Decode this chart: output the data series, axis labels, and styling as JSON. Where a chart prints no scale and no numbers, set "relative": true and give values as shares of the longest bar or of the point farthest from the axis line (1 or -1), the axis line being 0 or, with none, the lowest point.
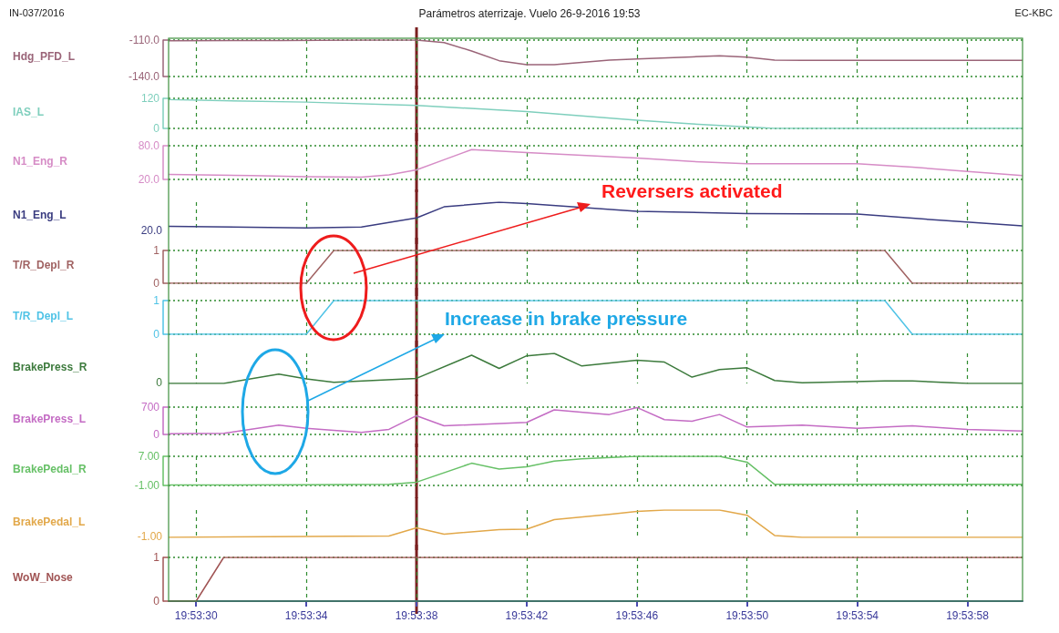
{
  "chart_data": [
    {
      "type": "line",
      "title": "Parámetros aterrizaje. Vuelo 26-9-2016 19:53",
      "annotations": [
        "IN-037/2016",
        "EC-KBC"
      ],
      "ylabel": "Hdg_PFD_L",
      "color": "#9a6478",
      "marker": "none",
      "grid": true,
      "tick_labels": "y",
      "x": [
        "2016-09-26T19:53:29",
        "2016-09-26T19:53:33",
        "2016-09-26T19:53:36",
        "2016-09-26T19:53:38",
        "2016-09-26T19:53:39",
        "2016-09-26T19:53:40",
        "2016-09-26T19:53:41",
        "2016-09-26T19:53:42",
        "2016-09-26T19:53:43",
        "2016-09-26T19:53:45",
        "2016-09-26T19:53:46",
        "2016-09-26T19:53:48",
        "2016-09-26T19:53:49",
        "2016-09-26T19:53:50",
        "2016-09-26T19:53:51",
        "2016-09-26T19:53:52",
        "2016-09-26T19:54:00"
      ],
      "values": [
        -110.5,
        -110.3,
        -110,
        -110,
        -112,
        -119,
        -127,
        -130.3,
        -130.2,
        -126.5,
        -125.5,
        -123.8,
        -123,
        -124,
        -126.5,
        -126.7,
        -126.7
      ],
      "ylim": [
        -140,
        -110
      ],
      "yticks": [
        {
          "value": -140,
          "label": "-140.0"
        },
        {
          "value": -110,
          "label": "-110.0"
        }
      ],
      "xlim": [
        "2016-09-26T19:53:29",
        "2016-09-26T19:54:00"
      ],
      "xticks": [
        {
          "value": "2016-09-26T19:53:30",
          "label": null
        },
        {
          "value": "2016-09-26T19:53:34",
          "label": null
        },
        {
          "value": "2016-09-26T19:53:38",
          "label": null
        },
        {
          "value": "2016-09-26T19:53:42",
          "label": null
        },
        {
          "value": "2016-09-26T19:53:46",
          "label": null
        },
        {
          "value": "2016-09-26T19:53:50",
          "label": null
        },
        {
          "value": "2016-09-26T19:53:54",
          "label": null
        },
        {
          "value": "2016-09-26T19:53:58",
          "label": null
        }
      ],
      "ref_lines": [
        {
          "axis": "x",
          "value": "2016-09-26T19:53:38",
          "color": "#7a1f1f"
        }
      ]
    },
    {
      "type": "line",
      "ylabel": "IAS_L",
      "color": "#7fcfbd",
      "marker": "none",
      "grid": true,
      "tick_labels": "y",
      "x": [
        "2016-09-26T19:53:29",
        "2016-09-26T19:53:34",
        "2016-09-26T19:53:38",
        "2016-09-26T19:53:42",
        "2016-09-26T19:53:46",
        "2016-09-26T19:53:48",
        "2016-09-26T19:53:51",
        "2016-09-26T19:54:00"
      ],
      "values": [
        115,
        105,
        92,
        67,
        33,
        18,
        0,
        0
      ],
      "ylim": [
        0,
        120
      ],
      "yticks": [
        0,
        120
      ],
      "xlim": [
        "2016-09-26T19:53:29",
        "2016-09-26T19:54:00"
      ],
      "xticks": [
        {
          "value": "2016-09-26T19:53:30",
          "label": null
        },
        {
          "value": "2016-09-26T19:53:34",
          "label": null
        },
        {
          "value": "2016-09-26T19:53:38",
          "label": null
        },
        {
          "value": "2016-09-26T19:53:42",
          "label": null
        },
        {
          "value": "2016-09-26T19:53:46",
          "label": null
        },
        {
          "value": "2016-09-26T19:53:50",
          "label": null
        },
        {
          "value": "2016-09-26T19:53:54",
          "label": null
        },
        {
          "value": "2016-09-26T19:53:58",
          "label": null
        }
      ],
      "ref_lines": [
        {
          "axis": "x",
          "value": "2016-09-26T19:53:38",
          "color": "#7a1f1f"
        }
      ]
    },
    {
      "type": "line",
      "ylabel": "N1_Eng_R",
      "color": "#d68cc6",
      "marker": "none",
      "grid": true,
      "tick_labels": "y",
      "x": [
        "2016-09-26T19:53:29",
        "2016-09-26T19:53:32",
        "2016-09-26T19:53:34",
        "2016-09-26T19:53:36",
        "2016-09-26T19:53:37",
        "2016-09-26T19:53:38",
        "2016-09-26T19:53:39",
        "2016-09-26T19:53:40",
        "2016-09-26T19:53:42",
        "2016-09-26T19:53:44",
        "2016-09-26T19:53:46",
        "2016-09-26T19:53:48",
        "2016-09-26T19:53:50",
        "2016-09-26T19:53:54",
        "2016-09-26T19:53:56",
        "2016-09-26T19:53:58",
        "2016-09-26T19:54:00"
      ],
      "values": [
        29,
        27,
        25,
        24,
        28,
        37,
        55,
        73,
        68,
        63,
        58,
        52,
        48,
        48,
        42,
        34,
        27
      ],
      "ylim": [
        20,
        80
      ],
      "yticks": [
        {
          "value": 20,
          "label": "20.0"
        },
        {
          "value": 80,
          "label": "80.0"
        }
      ],
      "xlim": [
        "2016-09-26T19:53:29",
        "2016-09-26T19:54:00"
      ],
      "xticks": [
        {
          "value": "2016-09-26T19:53:30",
          "label": null
        },
        {
          "value": "2016-09-26T19:53:34",
          "label": null
        },
        {
          "value": "2016-09-26T19:53:38",
          "label": null
        },
        {
          "value": "2016-09-26T19:53:42",
          "label": null
        },
        {
          "value": "2016-09-26T19:53:46",
          "label": null
        },
        {
          "value": "2016-09-26T19:53:50",
          "label": null
        },
        {
          "value": "2016-09-26T19:53:54",
          "label": null
        },
        {
          "value": "2016-09-26T19:53:58",
          "label": null
        }
      ],
      "ref_lines": [
        {
          "axis": "x",
          "value": "2016-09-26T19:53:38",
          "color": "#7a1f1f"
        }
      ]
    },
    {
      "type": "line",
      "ylabel": "N1_Eng_L",
      "annotations": [
        "20.0"
      ],
      "relative": true,
      "color": "#3a3c80",
      "marker": "none",
      "grid": "x",
      "tick_labels": false,
      "x": [
        "2016-09-26T19:53:29",
        "2016-09-26T19:53:34",
        "2016-09-26T19:53:36",
        "2016-09-26T19:53:38",
        "2016-09-26T19:53:39",
        "2016-09-26T19:53:41",
        "2016-09-26T19:53:42",
        "2016-09-26T19:53:46",
        "2016-09-26T19:53:50",
        "2016-09-26T19:53:54",
        "2016-09-26T19:53:57",
        "2016-09-26T19:54:00"
      ],
      "values": [
        0.17,
        0.12,
        0.15,
        0.46,
        0.84,
        1,
        0.95,
        0.69,
        0.61,
        0.59,
        0.38,
        0.19
      ],
      "xlim": [
        "2016-09-26T19:53:29",
        "2016-09-26T19:54:00"
      ],
      "xticks": [
        {
          "value": "2016-09-26T19:53:30",
          "label": null
        },
        {
          "value": "2016-09-26T19:53:34",
          "label": null
        },
        {
          "value": "2016-09-26T19:53:38",
          "label": null
        },
        {
          "value": "2016-09-26T19:53:42",
          "label": null
        },
        {
          "value": "2016-09-26T19:53:46",
          "label": null
        },
        {
          "value": "2016-09-26T19:53:50",
          "label": null
        },
        {
          "value": "2016-09-26T19:53:54",
          "label": null
        },
        {
          "value": "2016-09-26T19:53:58",
          "label": null
        }
      ],
      "ref_lines": [
        {
          "axis": "x",
          "value": "2016-09-26T19:53:38",
          "color": "#7a1f1f"
        }
      ]
    },
    {
      "type": "line",
      "ylabel": "T/R_Depl_R",
      "annotations": [
        "Reversers activated"
      ],
      "color": "#a06262",
      "marker": "none",
      "grid": true,
      "tick_labels": "y",
      "x": [
        "2016-09-26T19:53:29",
        "2016-09-26T19:53:34",
        "2016-09-26T19:53:35",
        "2016-09-26T19:53:55",
        "2016-09-26T19:53:56",
        "2016-09-26T19:54:00"
      ],
      "values": [
        0,
        0,
        1,
        1,
        0,
        0
      ],
      "ylim": [
        0,
        1
      ],
      "yticks": [
        0,
        1
      ],
      "xlim": [
        "2016-09-26T19:53:29",
        "2016-09-26T19:54:00"
      ],
      "xticks": [
        {
          "value": "2016-09-26T19:53:30",
          "label": null
        },
        {
          "value": "2016-09-26T19:53:34",
          "label": null
        },
        {
          "value": "2016-09-26T19:53:38",
          "label": null
        },
        {
          "value": "2016-09-26T19:53:42",
          "label": null
        },
        {
          "value": "2016-09-26T19:53:46",
          "label": null
        },
        {
          "value": "2016-09-26T19:53:50",
          "label": null
        },
        {
          "value": "2016-09-26T19:53:54",
          "label": null
        },
        {
          "value": "2016-09-26T19:53:58",
          "label": null
        }
      ],
      "ref_lines": [
        {
          "axis": "x",
          "value": "2016-09-26T19:53:38",
          "color": "#7a1f1f"
        }
      ]
    },
    {
      "type": "line",
      "ylabel": "T/R_Depl_L",
      "color": "#4fc3e6",
      "marker": "none",
      "grid": true,
      "tick_labels": "y",
      "x": [
        "2016-09-26T19:53:29",
        "2016-09-26T19:53:34",
        "2016-09-26T19:53:35",
        "2016-09-26T19:53:55",
        "2016-09-26T19:53:56",
        "2016-09-26T19:54:00"
      ],
      "values": [
        0,
        0,
        1,
        1,
        0,
        0
      ],
      "ylim": [
        0,
        1
      ],
      "yticks": [
        0,
        1
      ],
      "xlim": [
        "2016-09-26T19:53:29",
        "2016-09-26T19:54:00"
      ],
      "xticks": [
        {
          "value": "2016-09-26T19:53:30",
          "label": null
        },
        {
          "value": "2016-09-26T19:53:34",
          "label": null
        },
        {
          "value": "2016-09-26T19:53:38",
          "label": null
        },
        {
          "value": "2016-09-26T19:53:42",
          "label": null
        },
        {
          "value": "2016-09-26T19:53:46",
          "label": null
        },
        {
          "value": "2016-09-26T19:53:50",
          "label": null
        },
        {
          "value": "2016-09-26T19:53:54",
          "label": null
        },
        {
          "value": "2016-09-26T19:53:58",
          "label": null
        }
      ],
      "ref_lines": [
        {
          "axis": "x",
          "value": "2016-09-26T19:53:38",
          "color": "#7a1f1f"
        }
      ]
    },
    {
      "type": "line",
      "ylabel": "BrakePress_R",
      "annotations": [
        "0",
        "Increase in brake pressure"
      ],
      "relative": true,
      "color": "#3c7a3c",
      "marker": "none",
      "grid": "x",
      "tick_labels": false,
      "x": [
        "2016-09-26T19:53:29",
        "2016-09-26T19:53:31",
        "2016-09-26T19:53:33",
        "2016-09-26T19:53:34",
        "2016-09-26T19:53:35",
        "2016-09-26T19:53:38",
        "2016-09-26T19:53:40",
        "2016-09-26T19:53:41",
        "2016-09-26T19:53:42",
        "2016-09-26T19:53:43",
        "2016-09-26T19:53:44",
        "2016-09-26T19:53:46",
        "2016-09-26T19:53:47",
        "2016-09-26T19:53:48",
        "2016-09-26T19:53:49",
        "2016-09-26T19:53:50",
        "2016-09-26T19:53:51",
        "2016-09-26T19:53:52",
        "2016-09-26T19:53:55",
        "2016-09-26T19:53:56",
        "2016-09-26T19:53:58",
        "2016-09-26T19:54:00"
      ],
      "values": [
        0,
        0,
        0.31,
        0.15,
        0.04,
        0.17,
        0.94,
        0.5,
        0.92,
        1,
        0.58,
        0.77,
        0.71,
        0.21,
        0.46,
        0.52,
        0.1,
        0.02,
        0.08,
        0.08,
        0,
        0
      ],
      "xlim": [
        "2016-09-26T19:53:29",
        "2016-09-26T19:54:00"
      ],
      "xticks": [
        {
          "value": "2016-09-26T19:53:30",
          "label": null
        },
        {
          "value": "2016-09-26T19:53:34",
          "label": null
        },
        {
          "value": "2016-09-26T19:53:38",
          "label": null
        },
        {
          "value": "2016-09-26T19:53:42",
          "label": null
        },
        {
          "value": "2016-09-26T19:53:46",
          "label": null
        },
        {
          "value": "2016-09-26T19:53:50",
          "label": null
        },
        {
          "value": "2016-09-26T19:53:54",
          "label": null
        },
        {
          "value": "2016-09-26T19:53:58",
          "label": null
        }
      ],
      "ref_lines": [
        {
          "axis": "x",
          "value": "2016-09-26T19:53:38",
          "color": "#7a1f1f"
        }
      ]
    },
    {
      "type": "line",
      "ylabel": "BrakePress_L",
      "color": "#c46cc4",
      "marker": "none",
      "grid": true,
      "tick_labels": "y",
      "x": [
        "2016-09-26T19:53:29",
        "2016-09-26T19:53:31",
        "2016-09-26T19:53:33",
        "2016-09-26T19:53:34",
        "2016-09-26T19:53:36",
        "2016-09-26T19:53:37",
        "2016-09-26T19:53:38",
        "2016-09-26T19:53:39",
        "2016-09-26T19:53:42",
        "2016-09-26T19:53:43",
        "2016-09-26T19:53:45",
        "2016-09-26T19:53:46",
        "2016-09-26T19:53:47",
        "2016-09-26T19:53:48",
        "2016-09-26T19:53:49",
        "2016-09-26T19:53:50",
        "2016-09-26T19:53:52",
        "2016-09-26T19:53:54",
        "2016-09-26T19:53:56",
        "2016-09-26T19:53:58",
        "2016-09-26T19:54:00"
      ],
      "values": [
        20,
        30,
        240,
        160,
        50,
        130,
        480,
        220,
        310,
        630,
        510,
        690,
        380,
        340,
        510,
        190,
        240,
        160,
        220,
        130,
        90
      ],
      "ylim": [
        0,
        700
      ],
      "yticks": [
        0,
        700
      ],
      "xlim": [
        "2016-09-26T19:53:29",
        "2016-09-26T19:54:00"
      ],
      "xticks": [
        {
          "value": "2016-09-26T19:53:30",
          "label": null
        },
        {
          "value": "2016-09-26T19:53:34",
          "label": null
        },
        {
          "value": "2016-09-26T19:53:38",
          "label": null
        },
        {
          "value": "2016-09-26T19:53:42",
          "label": null
        },
        {
          "value": "2016-09-26T19:53:46",
          "label": null
        },
        {
          "value": "2016-09-26T19:53:50",
          "label": null
        },
        {
          "value": "2016-09-26T19:53:54",
          "label": null
        },
        {
          "value": "2016-09-26T19:53:58",
          "label": null
        }
      ],
      "ref_lines": [
        {
          "axis": "x",
          "value": "2016-09-26T19:53:38",
          "color": "#7a1f1f"
        }
      ]
    },
    {
      "type": "line",
      "ylabel": "BrakePedal_R",
      "color": "#66c066",
      "marker": "none",
      "grid": true,
      "tick_labels": "y",
      "x": [
        "2016-09-26T19:53:29",
        "2016-09-26T19:53:34",
        "2016-09-26T19:53:37",
        "2016-09-26T19:53:38",
        "2016-09-26T19:53:40",
        "2016-09-26T19:53:41",
        "2016-09-26T19:53:42",
        "2016-09-26T19:53:43",
        "2016-09-26T19:53:44",
        "2016-09-26T19:53:46",
        "2016-09-26T19:53:49",
        "2016-09-26T19:53:50",
        "2016-09-26T19:53:51",
        "2016-09-26T19:54:00"
      ],
      "values": [
        -0.9,
        -0.8,
        -0.7,
        -0.1,
        5.1,
        3.5,
        4.1,
        5.7,
        6.3,
        7,
        7,
        5.4,
        -0.7,
        -0.7
      ],
      "ylim": [
        -1,
        7
      ],
      "yticks": [
        {
          "value": -1,
          "label": "-1.00"
        },
        {
          "value": 7,
          "label": "7.00"
        }
      ],
      "xlim": [
        "2016-09-26T19:53:29",
        "2016-09-26T19:54:00"
      ],
      "xticks": [
        {
          "value": "2016-09-26T19:53:30",
          "label": null
        },
        {
          "value": "2016-09-26T19:53:34",
          "label": null
        },
        {
          "value": "2016-09-26T19:53:38",
          "label": null
        },
        {
          "value": "2016-09-26T19:53:42",
          "label": null
        },
        {
          "value": "2016-09-26T19:53:46",
          "label": null
        },
        {
          "value": "2016-09-26T19:53:50",
          "label": null
        },
        {
          "value": "2016-09-26T19:53:54",
          "label": null
        },
        {
          "value": "2016-09-26T19:53:58",
          "label": null
        }
      ],
      "ref_lines": [
        {
          "axis": "x",
          "value": "2016-09-26T19:53:38",
          "color": "#7a1f1f"
        }
      ]
    },
    {
      "type": "line",
      "ylabel": "BrakePedal_L",
      "annotations": [
        "-1.00"
      ],
      "relative": true,
      "color": "#e2a84a",
      "marker": "none",
      "grid": "x",
      "tick_labels": false,
      "x": [
        "2016-09-26T19:53:29",
        "2016-09-26T19:53:37",
        "2016-09-26T19:53:38",
        "2016-09-26T19:53:39",
        "2016-09-26T19:53:41",
        "2016-09-26T19:53:42",
        "2016-09-26T19:53:43",
        "2016-09-26T19:53:45",
        "2016-09-26T19:53:46",
        "2016-09-26T19:53:47",
        "2016-09-26T19:53:49",
        "2016-09-26T19:53:50",
        "2016-09-26T19:53:51",
        "2016-09-26T19:53:52",
        "2016-09-26T19:54:00"
      ],
      "values": [
        0,
        0.05,
        0.35,
        0.12,
        0.28,
        0.3,
        0.65,
        0.84,
        0.95,
        1,
        1,
        0.81,
        0.07,
        0,
        0
      ],
      "xlim": [
        "2016-09-26T19:53:29",
        "2016-09-26T19:54:00"
      ],
      "xticks": [
        {
          "value": "2016-09-26T19:53:30",
          "label": null
        },
        {
          "value": "2016-09-26T19:53:34",
          "label": null
        },
        {
          "value": "2016-09-26T19:53:38",
          "label": null
        },
        {
          "value": "2016-09-26T19:53:42",
          "label": null
        },
        {
          "value": "2016-09-26T19:53:46",
          "label": null
        },
        {
          "value": "2016-09-26T19:53:50",
          "label": null
        },
        {
          "value": "2016-09-26T19:53:54",
          "label": null
        },
        {
          "value": "2016-09-26T19:53:58",
          "label": null
        }
      ],
      "ref_lines": [
        {
          "axis": "x",
          "value": "2016-09-26T19:53:38",
          "color": "#7a1f1f"
        }
      ]
    },
    {
      "type": "line",
      "ylabel": "WoW_Nose",
      "color": "#a05454",
      "marker": "none",
      "grid": true,
      "x": [
        "2016-09-26T19:53:29",
        "2016-09-26T19:53:30",
        "2016-09-26T19:53:31",
        "2016-09-26T19:54:00"
      ],
      "values": [
        0,
        0,
        1,
        1
      ],
      "ylim": [
        0,
        1
      ],
      "yticks": [
        0,
        1
      ],
      "xlim": [
        "2016-09-26T19:53:29",
        "2016-09-26T19:54:00"
      ],
      "xticks": [
        {
          "value": "2016-09-26T19:53:30",
          "label": "19:53:30"
        },
        {
          "value": "2016-09-26T19:53:34",
          "label": "19:53:34"
        },
        {
          "value": "2016-09-26T19:53:38",
          "label": "19:53:38"
        },
        {
          "value": "2016-09-26T19:53:42",
          "label": "19:53:42"
        },
        {
          "value": "2016-09-26T19:53:46",
          "label": "19:53:46"
        },
        {
          "value": "2016-09-26T19:53:50",
          "label": "19:53:50"
        },
        {
          "value": "2016-09-26T19:53:54",
          "label": "19:53:54"
        },
        {
          "value": "2016-09-26T19:53:58",
          "label": "19:53:58"
        }
      ],
      "ref_lines": [
        {
          "axis": "x",
          "value": "2016-09-26T19:53:38",
          "color": "#7a1f1f"
        }
      ]
    }
  ]
}
